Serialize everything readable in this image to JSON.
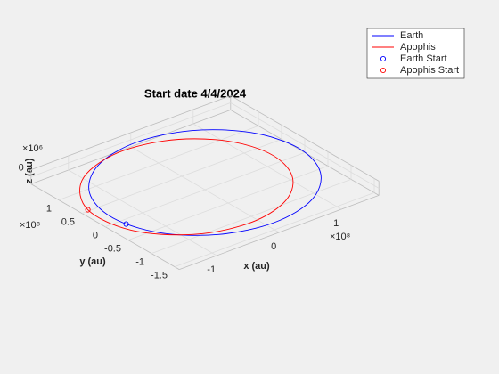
{
  "chart_data": {
    "type": "line3d",
    "title": "Start date 4/4/2024",
    "x_label": "x (au)",
    "y_label": "y (au)",
    "z_label": "z (au)",
    "x_multiplier": "×10⁸",
    "y_multiplier": "×10⁸",
    "z_multiplier": "×10⁶",
    "xlim": [
      -1.6,
      1.6
    ],
    "ylim": [
      -1.6,
      1.6
    ],
    "zlim": [
      -1,
      1
    ],
    "xticks": [
      -1,
      0,
      1
    ],
    "yticks": [
      -1.5,
      -1,
      -0.5,
      0,
      0.5,
      1
    ],
    "zticks": [
      0
    ],
    "grid": true,
    "legend_position": "outside-northeast",
    "series": [
      {
        "name": "Earth",
        "color": "#0000ff",
        "style": "line",
        "x": [
          1.496,
          1.296,
          0.748,
          0,
          -0.748,
          -1.296,
          -1.496,
          -1.296,
          -0.748,
          0,
          0.748,
          1.296,
          1.496
        ],
        "y": [
          0,
          0.748,
          1.296,
          1.496,
          1.296,
          0.748,
          0,
          -0.748,
          -1.296,
          -1.496,
          -1.296,
          -0.748,
          0
        ]
      },
      {
        "name": "Apophis",
        "color": "#ff0000",
        "style": "line",
        "x": [
          1.087,
          1.091,
          0.828,
          0.299,
          -0.43,
          -1.165,
          -1.602,
          -1.524,
          -1.003,
          -0.299,
          0.355,
          0.834,
          1.087
        ],
        "y": [
          -0.251,
          0.334,
          0.888,
          1.296,
          1.406,
          1.086,
          0.37,
          -0.465,
          -1.075,
          -1.296,
          -1.161,
          -0.778,
          -0.251
        ]
      },
      {
        "name": "Earth Start",
        "color": "#0000ff",
        "style": "marker",
        "x": [
          -1.47
        ],
        "y": [
          -0.278
        ]
      },
      {
        "name": "Apophis Start",
        "color": "#ff0000",
        "style": "marker",
        "x": [
          -1.602
        ],
        "y": [
          0.37
        ]
      }
    ]
  }
}
